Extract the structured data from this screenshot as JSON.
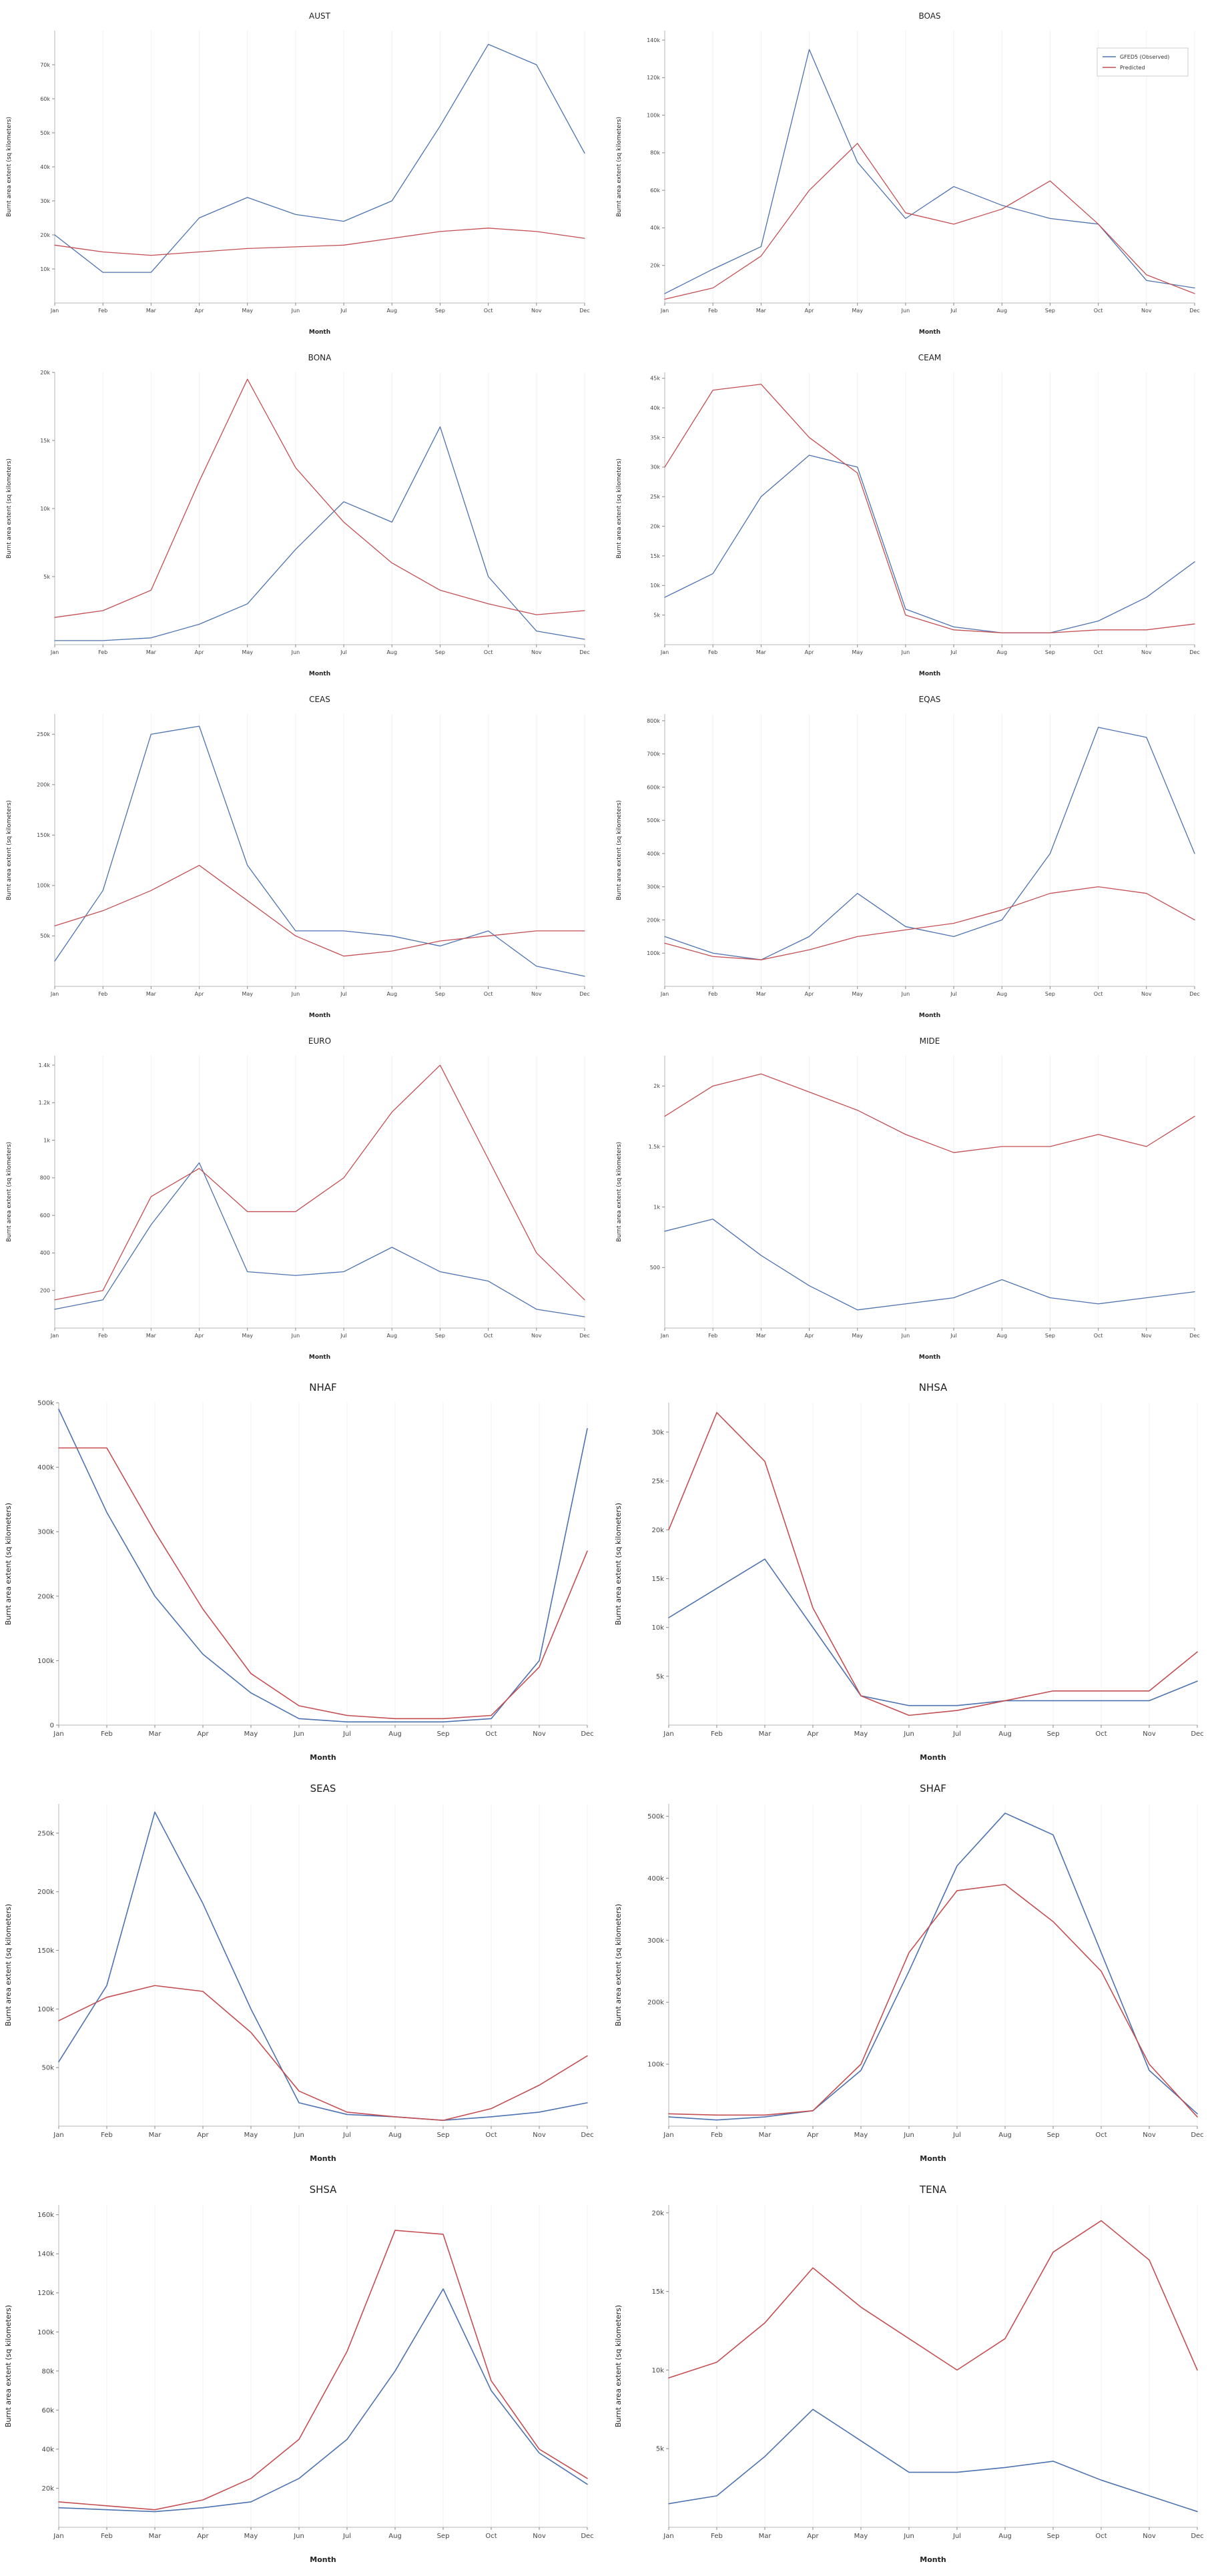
{
  "figure": {
    "background": "#ffffff",
    "accent_observed": "#4c72b0",
    "accent_predicted": "#c44e52"
  },
  "legend": {
    "entries": [
      {
        "label": "GFED5 (Observed)",
        "color": "#4c72b0"
      },
      {
        "label": "Predicted",
        "color": "#c44e52"
      }
    ],
    "position": "upper-right of BOAS panel"
  },
  "chart_data": [
    {
      "type": "line",
      "title": "AUST",
      "xlabel": "Month",
      "ylabel": "Burnt area extent (sq kilometers)",
      "categories": [
        "Jan",
        "Feb",
        "Mar",
        "Apr",
        "May",
        "Jun",
        "Jul",
        "Aug",
        "Sep",
        "Oct",
        "Nov",
        "Dec"
      ],
      "ylim": [
        0,
        80000
      ],
      "yticks": [
        10000,
        20000,
        30000,
        40000,
        50000,
        60000,
        70000
      ],
      "legend": false,
      "grid": true,
      "series": [
        {
          "name": "GFED5 (Observed)",
          "color": "#4c72b0",
          "values": [
            20000,
            9000,
            9000,
            25000,
            31000,
            26000,
            24000,
            30000,
            52000,
            76000,
            70000,
            44000
          ]
        },
        {
          "name": "Predicted",
          "color": "#c44e52",
          "values": [
            17000,
            15000,
            14000,
            15000,
            16000,
            16500,
            17000,
            19000,
            21000,
            22000,
            21000,
            19000
          ]
        }
      ]
    },
    {
      "type": "line",
      "title": "BOAS",
      "xlabel": "Month",
      "ylabel": "Burnt area extent (sq kilometers)",
      "categories": [
        "Jan",
        "Feb",
        "Mar",
        "Apr",
        "May",
        "Jun",
        "Jul",
        "Aug",
        "Sep",
        "Oct",
        "Nov",
        "Dec"
      ],
      "ylim": [
        0,
        145000
      ],
      "yticks": [
        20000,
        40000,
        60000,
        80000,
        100000,
        120000,
        140000
      ],
      "legend": true,
      "grid": true,
      "series": [
        {
          "name": "GFED5 (Observed)",
          "color": "#4c72b0",
          "values": [
            5000,
            18000,
            30000,
            135000,
            75000,
            45000,
            62000,
            52000,
            45000,
            42000,
            12000,
            8000
          ]
        },
        {
          "name": "Predicted",
          "color": "#c44e52",
          "values": [
            2000,
            8000,
            25000,
            60000,
            85000,
            48000,
            42000,
            50000,
            65000,
            42000,
            15000,
            5000
          ]
        }
      ]
    },
    {
      "type": "line",
      "title": "BONA",
      "xlabel": "Month",
      "ylabel": "Burnt area extent (sq kilometers)",
      "categories": [
        "Jan",
        "Feb",
        "Mar",
        "Apr",
        "May",
        "Jun",
        "Jul",
        "Aug",
        "Sep",
        "Oct",
        "Nov",
        "Dec"
      ],
      "ylim": [
        0,
        20000
      ],
      "yticks": [
        5000,
        10000,
        15000,
        20000
      ],
      "legend": false,
      "grid": true,
      "series": [
        {
          "name": "GFED5 (Observed)",
          "color": "#4c72b0",
          "values": [
            300,
            300,
            500,
            1500,
            3000,
            7000,
            10500,
            9000,
            16000,
            5000,
            1000,
            400
          ]
        },
        {
          "name": "Predicted",
          "color": "#c44e52",
          "values": [
            2000,
            2500,
            4000,
            12000,
            19500,
            13000,
            9000,
            6000,
            4000,
            3000,
            2200,
            2500
          ]
        }
      ]
    },
    {
      "type": "line",
      "title": "CEAM",
      "xlabel": "Month",
      "ylabel": "Burnt area extent (sq kilometers)",
      "categories": [
        "Jan",
        "Feb",
        "Mar",
        "Apr",
        "May",
        "Jun",
        "Jul",
        "Aug",
        "Sep",
        "Oct",
        "Nov",
        "Dec"
      ],
      "ylim": [
        0,
        46000
      ],
      "yticks": [
        5000,
        10000,
        15000,
        20000,
        25000,
        30000,
        35000,
        40000,
        45000
      ],
      "legend": false,
      "grid": true,
      "series": [
        {
          "name": "GFED5 (Observed)",
          "color": "#4c72b0",
          "values": [
            8000,
            12000,
            25000,
            32000,
            30000,
            6000,
            3000,
            2000,
            2000,
            4000,
            8000,
            14000
          ]
        },
        {
          "name": "Predicted",
          "color": "#c44e52",
          "values": [
            30000,
            43000,
            44000,
            35000,
            29000,
            5000,
            2500,
            2000,
            2000,
            2500,
            2500,
            3500
          ]
        }
      ]
    },
    {
      "type": "line",
      "title": "CEAS",
      "xlabel": "Month",
      "ylabel": "Burnt area extent (sq kilometers)",
      "categories": [
        "Jan",
        "Feb",
        "Mar",
        "Apr",
        "May",
        "Jun",
        "Jul",
        "Aug",
        "Sep",
        "Oct",
        "Nov",
        "Dec"
      ],
      "ylim": [
        0,
        270000
      ],
      "yticks": [
        50000,
        100000,
        150000,
        200000,
        250000
      ],
      "legend": false,
      "grid": true,
      "series": [
        {
          "name": "GFED5 (Observed)",
          "color": "#4c72b0",
          "values": [
            25000,
            95000,
            250000,
            258000,
            120000,
            55000,
            55000,
            50000,
            40000,
            55000,
            20000,
            10000
          ]
        },
        {
          "name": "Predicted",
          "color": "#c44e52",
          "values": [
            60000,
            75000,
            95000,
            120000,
            85000,
            50000,
            30000,
            35000,
            45000,
            50000,
            55000,
            55000
          ]
        }
      ]
    },
    {
      "type": "line",
      "title": "EQAS",
      "xlabel": "Month",
      "ylabel": "Burnt area extent (sq kilometers)",
      "categories": [
        "Jan",
        "Feb",
        "Mar",
        "Apr",
        "May",
        "Jun",
        "Jul",
        "Aug",
        "Sep",
        "Oct",
        "Nov",
        "Dec"
      ],
      "ylim": [
        0,
        820000
      ],
      "yticks": [
        100000,
        200000,
        300000,
        400000,
        500000,
        600000,
        700000,
        800000
      ],
      "legend": false,
      "grid": true,
      "series": [
        {
          "name": "GFED5 (Observed)",
          "color": "#4c72b0",
          "values": [
            150000,
            100000,
            80000,
            150000,
            280000,
            180000,
            150000,
            200000,
            400000,
            780000,
            750000,
            400000
          ]
        },
        {
          "name": "Predicted",
          "color": "#c44e52",
          "values": [
            130000,
            90000,
            80000,
            110000,
            150000,
            170000,
            190000,
            230000,
            280000,
            300000,
            280000,
            200000
          ]
        }
      ]
    },
    {
      "type": "line",
      "title": "EURO",
      "xlabel": "Month",
      "ylabel": "Burnt area extent (sq kilometers)",
      "categories": [
        "Jan",
        "Feb",
        "Mar",
        "Apr",
        "May",
        "Jun",
        "Jul",
        "Aug",
        "Sep",
        "Oct",
        "Nov",
        "Dec"
      ],
      "ylim": [
        0,
        1450
      ],
      "yticks": [
        200,
        400,
        600,
        800,
        1000,
        1200,
        1400
      ],
      "legend": false,
      "grid": true,
      "series": [
        {
          "name": "GFED5 (Observed)",
          "color": "#4c72b0",
          "values": [
            100,
            150,
            550,
            880,
            300,
            280,
            300,
            430,
            300,
            250,
            100,
            60
          ]
        },
        {
          "name": "Predicted",
          "color": "#c44e52",
          "values": [
            150,
            200,
            700,
            850,
            620,
            620,
            800,
            1150,
            1400,
            900,
            400,
            150
          ]
        }
      ]
    },
    {
      "type": "line",
      "title": "MIDE",
      "xlabel": "Month",
      "ylabel": "Burnt area extent (sq kilometers)",
      "categories": [
        "Jan",
        "Feb",
        "Mar",
        "Apr",
        "May",
        "Jun",
        "Jul",
        "Aug",
        "Sep",
        "Oct",
        "Nov",
        "Dec"
      ],
      "ylim": [
        0,
        2250
      ],
      "yticks": [
        500,
        1000,
        1500,
        2000
      ],
      "legend": false,
      "grid": true,
      "series": [
        {
          "name": "GFED5 (Observed)",
          "color": "#4c72b0",
          "values": [
            800,
            900,
            600,
            350,
            150,
            200,
            250,
            400,
            250,
            200,
            250,
            300
          ]
        },
        {
          "name": "Predicted",
          "color": "#c44e52",
          "values": [
            1750,
            2000,
            2100,
            1950,
            1800,
            1600,
            1450,
            1500,
            1500,
            1600,
            1500,
            1750
          ]
        }
      ]
    },
    {
      "type": "line",
      "title": "NHAF",
      "xlabel": "Month",
      "ylabel": "Burnt area extent (sq kilometers)",
      "categories": [
        "Jan",
        "Feb",
        "Mar",
        "Apr",
        "May",
        "Jun",
        "Jul",
        "Aug",
        "Sep",
        "Oct",
        "Nov",
        "Dec"
      ],
      "ylim": [
        0,
        500000
      ],
      "yticks": [
        0,
        100000,
        200000,
        300000,
        400000,
        500000
      ],
      "legend": false,
      "grid": true,
      "series": [
        {
          "name": "GFED5 (Observed)",
          "color": "#4c72b0",
          "values": [
            490000,
            330000,
            200000,
            110000,
            50000,
            10000,
            5000,
            5000,
            5000,
            10000,
            100000,
            460000
          ]
        },
        {
          "name": "Predicted",
          "color": "#c44e52",
          "values": [
            430000,
            430000,
            300000,
            180000,
            80000,
            30000,
            15000,
            10000,
            10000,
            15000,
            90000,
            270000
          ]
        }
      ]
    },
    {
      "type": "line",
      "title": "NHSA",
      "xlabel": "Month",
      "ylabel": "Burnt area extent (sq kilometers)",
      "categories": [
        "Jan",
        "Feb",
        "Mar",
        "Apr",
        "May",
        "Jun",
        "Jul",
        "Aug",
        "Sep",
        "Oct",
        "Nov",
        "Dec"
      ],
      "ylim": [
        0,
        33000
      ],
      "yticks": [
        5000,
        10000,
        15000,
        20000,
        25000,
        30000
      ],
      "legend": false,
      "grid": true,
      "series": [
        {
          "name": "GFED5 (Observed)",
          "color": "#4c72b0",
          "values": [
            11000,
            14000,
            17000,
            10000,
            3000,
            2000,
            2000,
            2500,
            2500,
            2500,
            2500,
            4500
          ]
        },
        {
          "name": "Predicted",
          "color": "#c44e52",
          "values": [
            20000,
            32000,
            27000,
            12000,
            3000,
            1000,
            1500,
            2500,
            3500,
            3500,
            3500,
            7500
          ]
        }
      ]
    },
    {
      "type": "line",
      "title": "SEAS",
      "xlabel": "Month",
      "ylabel": "Burnt area extent (sq kilometers)",
      "categories": [
        "Jan",
        "Feb",
        "Mar",
        "Apr",
        "May",
        "Jun",
        "Jul",
        "Aug",
        "Sep",
        "Oct",
        "Nov",
        "Dec"
      ],
      "ylim": [
        0,
        275000
      ],
      "yticks": [
        50000,
        100000,
        150000,
        200000,
        250000
      ],
      "legend": false,
      "grid": true,
      "series": [
        {
          "name": "GFED5 (Observed)",
          "color": "#4c72b0",
          "values": [
            55000,
            120000,
            268000,
            190000,
            100000,
            20000,
            10000,
            8000,
            5000,
            8000,
            12000,
            20000
          ]
        },
        {
          "name": "Predicted",
          "color": "#c44e52",
          "values": [
            90000,
            110000,
            120000,
            115000,
            80000,
            30000,
            12000,
            8000,
            5000,
            15000,
            35000,
            60000
          ]
        }
      ]
    },
    {
      "type": "line",
      "title": "SHAF",
      "xlabel": "Month",
      "ylabel": "Burnt area extent (sq kilometers)",
      "categories": [
        "Jan",
        "Feb",
        "Mar",
        "Apr",
        "May",
        "Jun",
        "Jul",
        "Aug",
        "Sep",
        "Oct",
        "Nov",
        "Dec"
      ],
      "ylim": [
        0,
        520000
      ],
      "yticks": [
        100000,
        200000,
        300000,
        400000,
        500000
      ],
      "legend": false,
      "grid": true,
      "series": [
        {
          "name": "GFED5 (Observed)",
          "color": "#4c72b0",
          "values": [
            15000,
            10000,
            15000,
            25000,
            90000,
            250000,
            420000,
            505000,
            470000,
            280000,
            90000,
            20000
          ]
        },
        {
          "name": "Predicted",
          "color": "#c44e52",
          "values": [
            20000,
            18000,
            18000,
            25000,
            100000,
            280000,
            380000,
            390000,
            330000,
            250000,
            100000,
            15000
          ]
        }
      ]
    },
    {
      "type": "line",
      "title": "SHSA",
      "xlabel": "Month",
      "ylabel": "Burnt area extent (sq kilometers)",
      "categories": [
        "Jan",
        "Feb",
        "Mar",
        "Apr",
        "May",
        "Jun",
        "Jul",
        "Aug",
        "Sep",
        "Oct",
        "Nov",
        "Dec"
      ],
      "ylim": [
        0,
        165000
      ],
      "yticks": [
        20000,
        40000,
        60000,
        80000,
        100000,
        120000,
        140000,
        160000
      ],
      "legend": false,
      "grid": true,
      "series": [
        {
          "name": "GFED5 (Observed)",
          "color": "#4c72b0",
          "values": [
            10000,
            9000,
            8000,
            10000,
            13000,
            25000,
            45000,
            80000,
            122000,
            70000,
            38000,
            22000
          ]
        },
        {
          "name": "Predicted",
          "color": "#c44e52",
          "values": [
            13000,
            11000,
            9000,
            14000,
            25000,
            45000,
            90000,
            152000,
            150000,
            75000,
            40000,
            25000
          ]
        }
      ]
    },
    {
      "type": "line",
      "title": "TENA",
      "xlabel": "Month",
      "ylabel": "Burnt area extent (sq kilometers)",
      "categories": [
        "Jan",
        "Feb",
        "Mar",
        "Apr",
        "May",
        "Jun",
        "Jul",
        "Aug",
        "Sep",
        "Oct",
        "Nov",
        "Dec"
      ],
      "ylim": [
        0,
        20500
      ],
      "yticks": [
        5000,
        10000,
        15000,
        20000
      ],
      "legend": false,
      "grid": true,
      "series": [
        {
          "name": "GFED5 (Observed)",
          "color": "#4c72b0",
          "values": [
            1500,
            2000,
            4500,
            7500,
            5500,
            3500,
            3500,
            3800,
            4200,
            3000,
            2000,
            1000
          ]
        },
        {
          "name": "Predicted",
          "color": "#c44e52",
          "values": [
            9500,
            10500,
            13000,
            16500,
            14000,
            12000,
            10000,
            12000,
            17500,
            19500,
            17000,
            10000
          ]
        }
      ]
    }
  ]
}
